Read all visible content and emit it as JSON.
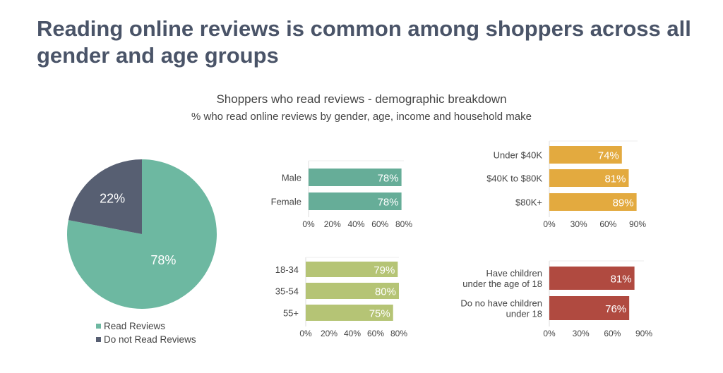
{
  "title": "Reading online reviews is common among shoppers across all gender and age groups",
  "chart_subtitle": "Shoppers who read reviews - demographic breakdown",
  "chart_caption": "% who read online reviews by gender, age, income and household make",
  "chart_data": [
    {
      "type": "pie",
      "categories": [
        "Read Reviews",
        "Do not Read Reviews"
      ],
      "values": [
        78,
        22
      ],
      "labels": [
        "78%",
        "22%"
      ],
      "colors": [
        "#6db8a1",
        "#575f72"
      ],
      "legend": "bottom"
    },
    {
      "type": "bar",
      "orientation": "horizontal",
      "categories": [
        "Male",
        "Female"
      ],
      "values": [
        78,
        78
      ],
      "labels": [
        "78%",
        "78%"
      ],
      "xlim": [
        0,
        80
      ],
      "ticks": [
        "0%",
        "20%",
        "40%",
        "60%",
        "80%"
      ],
      "color": "#66ad98"
    },
    {
      "type": "bar",
      "orientation": "horizontal",
      "categories": [
        "Under $40K",
        "$40K to $80K",
        "$80K+"
      ],
      "values": [
        74,
        81,
        89
      ],
      "labels": [
        "74%",
        "81%",
        "89%"
      ],
      "xlim": [
        0,
        90
      ],
      "ticks": [
        "0%",
        "30%",
        "60%",
        "90%"
      ],
      "color": "#e3aa3f"
    },
    {
      "type": "bar",
      "orientation": "horizontal",
      "categories": [
        "18-34",
        "35-54",
        "55+"
      ],
      "values": [
        79,
        80,
        75
      ],
      "labels": [
        "79%",
        "80%",
        "75%"
      ],
      "xlim": [
        0,
        80
      ],
      "ticks": [
        "0%",
        "20%",
        "40%",
        "60%",
        "80%"
      ],
      "color": "#b5c475"
    },
    {
      "type": "bar",
      "orientation": "horizontal",
      "categories": [
        "Have children\nunder  the age of 18",
        "Do no have children\nunder 18"
      ],
      "values": [
        81,
        76
      ],
      "labels": [
        "81%",
        "76%"
      ],
      "xlim": [
        0,
        90
      ],
      "ticks": [
        "0%",
        "30%",
        "60%",
        "90%"
      ],
      "color": "#b04a40"
    }
  ]
}
